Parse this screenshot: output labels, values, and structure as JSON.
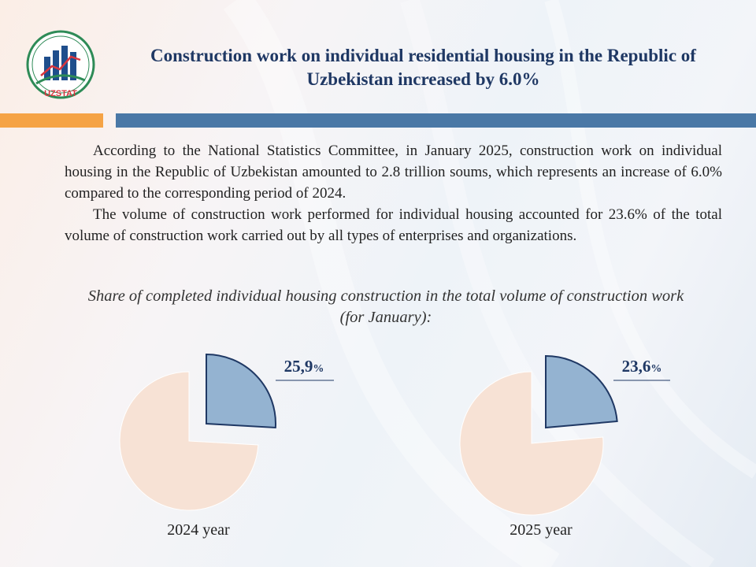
{
  "logo": {
    "text": "UZSTAT",
    "icon": "bar-chart-icon",
    "colors": {
      "green": "#2e8b57",
      "blue": "#1f4e8c",
      "red": "#d9363e"
    }
  },
  "header": {
    "title": "Construction work on individual residential housing in the Republic of Uzbekistan increased by 6.0%"
  },
  "body": {
    "paragraph1": "According to the National Statistics Committee, in January 2025, construction work on individual housing in the Republic of Uzbekistan amounted to 2.8 trillion soums, which represents an increase of 6.0% compared to the corresponding period of 2024.",
    "paragraph2": "The volume of construction work performed for individual housing accounted for 23.6% of the total volume of construction work carried out by all types of enterprises and organizations."
  },
  "colors": {
    "accent_orange": "#f5a345",
    "accent_blue": "#4a78a6",
    "share_fill": "#94b3d1",
    "share_stroke": "#1f3864",
    "rest_fill": "#f7e2d5"
  },
  "chart_data": [
    {
      "type": "pie",
      "title": "Share of completed individual housing construction in the total volume of construction work (for January):",
      "label": "2024 year",
      "slices": [
        {
          "value": 25.9,
          "label": "25,9%"
        },
        {
          "value": 74.1,
          "label": ""
        }
      ]
    },
    {
      "type": "pie",
      "title": "Share of completed individual housing construction in the total volume of construction work (for January):",
      "label": "2025 year",
      "slices": [
        {
          "value": 23.6,
          "label": "23,6%"
        },
        {
          "value": 76.4,
          "label": ""
        }
      ]
    }
  ]
}
